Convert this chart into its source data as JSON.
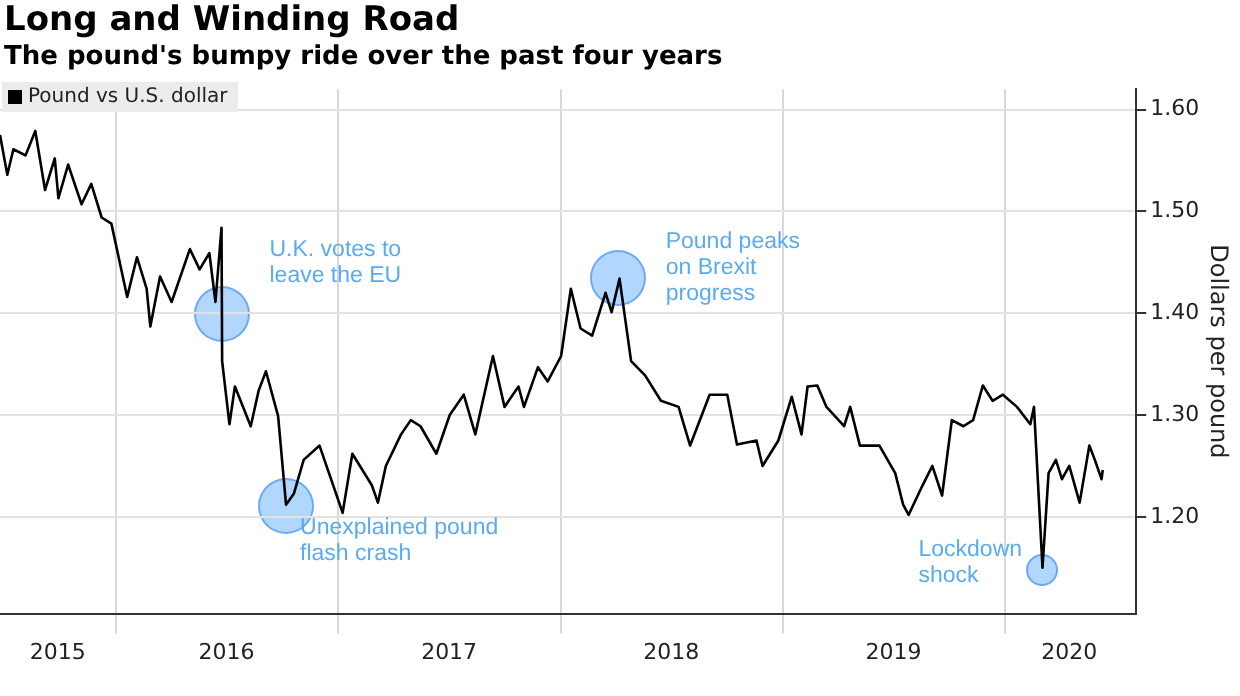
{
  "chart_data": {
    "type": "line",
    "title": "Long and Winding Road",
    "subtitle": "The pound's bumpy ride over the past four years",
    "ylabel": "Dollars per pound",
    "x": [
      "2015-06-25",
      "2015-07-07",
      "2015-07-17",
      "2015-08-06",
      "2015-08-22",
      "2015-09-07",
      "2015-09-23",
      "2015-09-29",
      "2015-10-15",
      "2015-11-06",
      "2015-11-22",
      "2015-12-09",
      "2015-12-25",
      "2016-01-20",
      "2016-02-05",
      "2016-02-21",
      "2016-02-27",
      "2016-03-14",
      "2016-04-02",
      "2016-05-02",
      "2016-05-18",
      "2016-06-03",
      "2016-06-13",
      "2016-06-23",
      "2016-06-24",
      "2016-07-06",
      "2016-07-15",
      "2016-08-10",
      "2016-08-23",
      "2016-09-04",
      "2016-09-24",
      "2016-10-07",
      "2016-10-20",
      "2016-11-05",
      "2016-12-01",
      "2017-01-08",
      "2017-01-24",
      "2017-02-25",
      "2017-03-07",
      "2017-03-20",
      "2017-04-14",
      "2017-04-30",
      "2017-05-16",
      "2017-06-11",
      "2017-07-03",
      "2017-07-26",
      "2017-08-14",
      "2017-09-12",
      "2017-10-01",
      "2017-10-24",
      "2017-11-02",
      "2017-11-25",
      "2017-12-11",
      "2018-01-02",
      "2018-01-18",
      "2018-02-03",
      "2018-02-22",
      "2018-03-16",
      "2018-03-26",
      "2018-04-08",
      "2018-04-27",
      "2018-05-20",
      "2018-06-15",
      "2018-07-14",
      "2018-08-02",
      "2018-09-03",
      "2018-10-02",
      "2018-10-18",
      "2018-11-19",
      "2018-11-29",
      "2018-12-25",
      "2019-01-16",
      "2019-02-01",
      "2019-02-11",
      "2019-02-27",
      "2019-03-14",
      "2019-04-12",
      "2019-04-22",
      "2019-05-08",
      "2019-06-09",
      "2019-07-05",
      "2019-07-18",
      "2019-07-27",
      "2019-08-19",
      "2019-09-04",
      "2019-09-20",
      "2019-10-06",
      "2019-10-25",
      "2019-11-10",
      "2019-11-26",
      "2019-12-12",
      "2019-12-29",
      "2020-01-21",
      "2020-02-12",
      "2020-02-18",
      "2020-03-03",
      "2020-03-13",
      "2020-03-25",
      "2020-04-04",
      "2020-04-16",
      "2020-05-03",
      "2020-05-19",
      "2020-05-28",
      "2020-06-08",
      "2020-06-10"
    ],
    "series": [
      {
        "name": "Pound vs U.S. dollar",
        "color": "#000000",
        "values": [
          1.575,
          1.536,
          1.561,
          1.555,
          1.579,
          1.521,
          1.552,
          1.513,
          1.546,
          1.507,
          1.527,
          1.494,
          1.488,
          1.416,
          1.455,
          1.424,
          1.387,
          1.436,
          1.411,
          1.463,
          1.443,
          1.459,
          1.411,
          1.484,
          1.353,
          1.291,
          1.328,
          1.289,
          1.324,
          1.343,
          1.299,
          1.212,
          1.223,
          1.256,
          1.27,
          1.204,
          1.262,
          1.231,
          1.214,
          1.25,
          1.281,
          1.295,
          1.289,
          1.262,
          1.3,
          1.32,
          1.281,
          1.358,
          1.308,
          1.328,
          1.308,
          1.347,
          1.333,
          1.358,
          1.424,
          1.385,
          1.378,
          1.42,
          1.401,
          1.434,
          1.353,
          1.339,
          1.314,
          1.308,
          1.27,
          1.32,
          1.32,
          1.271,
          1.275,
          1.25,
          1.275,
          1.318,
          1.281,
          1.328,
          1.329,
          1.308,
          1.289,
          1.308,
          1.27,
          1.27,
          1.243,
          1.212,
          1.202,
          1.231,
          1.25,
          1.221,
          1.295,
          1.289,
          1.295,
          1.329,
          1.314,
          1.32,
          1.308,
          1.291,
          1.308,
          1.15,
          1.243,
          1.256,
          1.237,
          1.25,
          1.214,
          1.27,
          1.256,
          1.237,
          1.246
        ]
      }
    ],
    "xlim": [
      "2015-06-25",
      "2020-08-04"
    ],
    "xticks": [
      {
        "value": "2015-09-28",
        "label": "2015"
      },
      {
        "value": "2016-01-01",
        "label": null
      },
      {
        "value": "2016-07-01",
        "label": "2016"
      },
      {
        "value": "2017-01-01",
        "label": null
      },
      {
        "value": "2017-07-02",
        "label": "2017"
      },
      {
        "value": "2018-01-01",
        "label": null
      },
      {
        "value": "2018-07-02",
        "label": "2018"
      },
      {
        "value": "2019-01-01",
        "label": null
      },
      {
        "value": "2019-07-02",
        "label": "2019"
      },
      {
        "value": "2020-01-01",
        "label": null
      },
      {
        "value": "2020-04-16",
        "label": "2020"
      }
    ],
    "ylim": [
      1.105,
      1.62
    ],
    "yticks": [
      {
        "value": 1.2,
        "label": "1.20"
      },
      {
        "value": 1.3,
        "label": "1.30"
      },
      {
        "value": 1.4,
        "label": "1.40"
      },
      {
        "value": 1.5,
        "label": "1.50"
      },
      {
        "value": 1.6,
        "label": "1.60"
      }
    ],
    "grid": true,
    "legend": "top left",
    "annotations": [
      {
        "text": "U.K. votes to leave the EU",
        "x": "2016-06-23",
        "y": 1.4
      },
      {
        "text": "Unexplained pound flash crash",
        "x": "2016-10-07",
        "y": 1.21
      },
      {
        "text": "Pound peaks on Brexit progress",
        "x": "2018-04-05",
        "y": 1.435
      },
      {
        "text": "Lockdown shock",
        "x": "2020-03-03",
        "y": 1.147
      }
    ]
  }
}
